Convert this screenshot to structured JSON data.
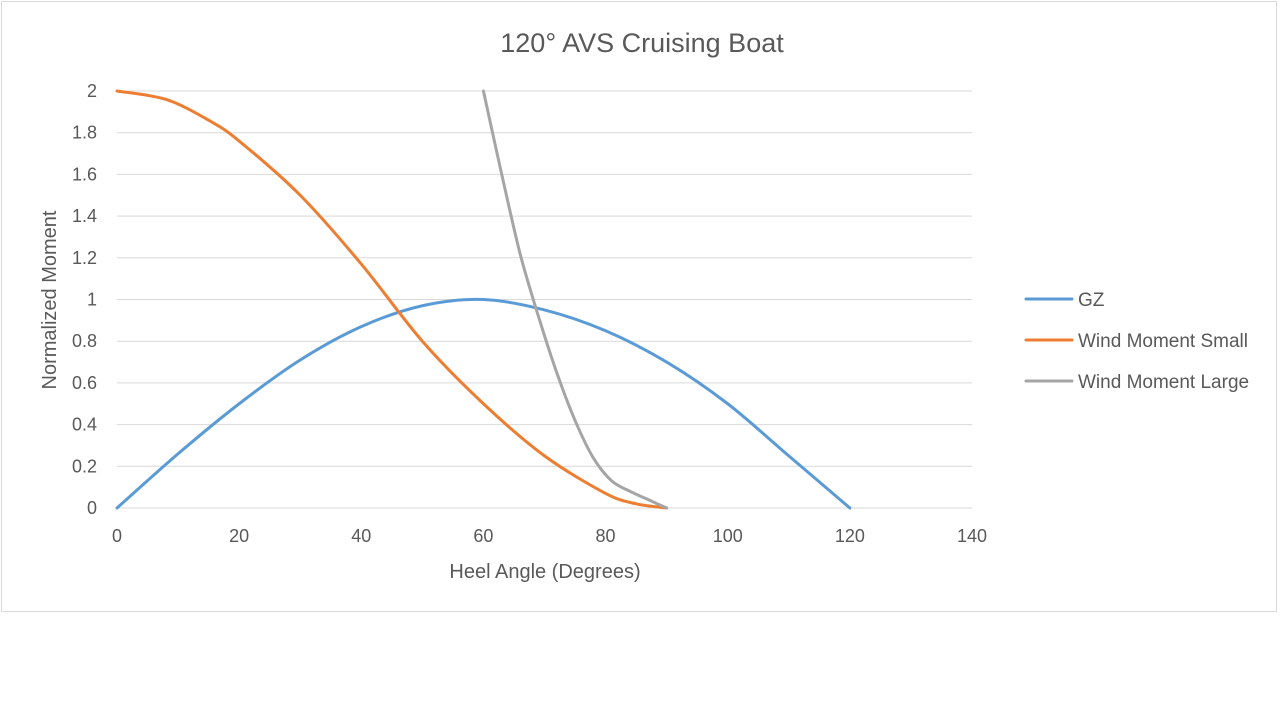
{
  "chart_data": {
    "type": "line",
    "title": "120° AVS Cruising Boat",
    "xlabel": "Heel Angle (Degrees)",
    "ylabel": "Normalized Moment",
    "xlim": [
      0,
      140
    ],
    "ylim": [
      0,
      2
    ],
    "x_ticks": [
      0,
      20,
      40,
      60,
      80,
      100,
      120,
      140
    ],
    "y_ticks": [
      0,
      0.2,
      0.4,
      0.6,
      0.8,
      1,
      1.2,
      1.4,
      1.6,
      1.8,
      2
    ],
    "x_tick_labels": [
      "0",
      "20",
      "40",
      "60",
      "80",
      "100",
      "120",
      "140"
    ],
    "y_tick_labels": [
      "0",
      "0.2",
      "0.4",
      "0.6",
      "0.8",
      "1",
      "1.2",
      "1.4",
      "1.6",
      "1.8",
      "2"
    ],
    "grid": "horizontal",
    "legend_position": "right",
    "series": [
      {
        "name": "GZ",
        "color": "#5b9bd5",
        "points": [
          [
            0,
            0
          ],
          [
            10,
            0.26
          ],
          [
            20,
            0.5
          ],
          [
            30,
            0.71
          ],
          [
            40,
            0.87
          ],
          [
            50,
            0.97
          ],
          [
            60,
            1.0
          ],
          [
            70,
            0.95
          ],
          [
            80,
            0.85
          ],
          [
            90,
            0.7
          ],
          [
            100,
            0.5
          ],
          [
            110,
            0.25
          ],
          [
            120,
            0
          ]
        ]
      },
      {
        "name": "Wind Moment Small",
        "color": "#ed7d31",
        "points": [
          [
            0,
            2.0
          ],
          [
            8,
            1.96
          ],
          [
            15,
            1.86
          ],
          [
            20,
            1.76
          ],
          [
            30,
            1.5
          ],
          [
            40,
            1.17
          ],
          [
            50,
            0.8
          ],
          [
            60,
            0.5
          ],
          [
            70,
            0.25
          ],
          [
            80,
            0.07
          ],
          [
            85,
            0.02
          ],
          [
            90,
            0
          ]
        ]
      },
      {
        "name": "Wind Moment Large",
        "color": "#a5a5a5",
        "points": [
          [
            60,
            2.0
          ],
          [
            63,
            1.6
          ],
          [
            66,
            1.22
          ],
          [
            69,
            0.92
          ],
          [
            72,
            0.65
          ],
          [
            75,
            0.42
          ],
          [
            78,
            0.24
          ],
          [
            81,
            0.13
          ],
          [
            84,
            0.08
          ],
          [
            87,
            0.04
          ],
          [
            90,
            0
          ]
        ]
      }
    ]
  }
}
